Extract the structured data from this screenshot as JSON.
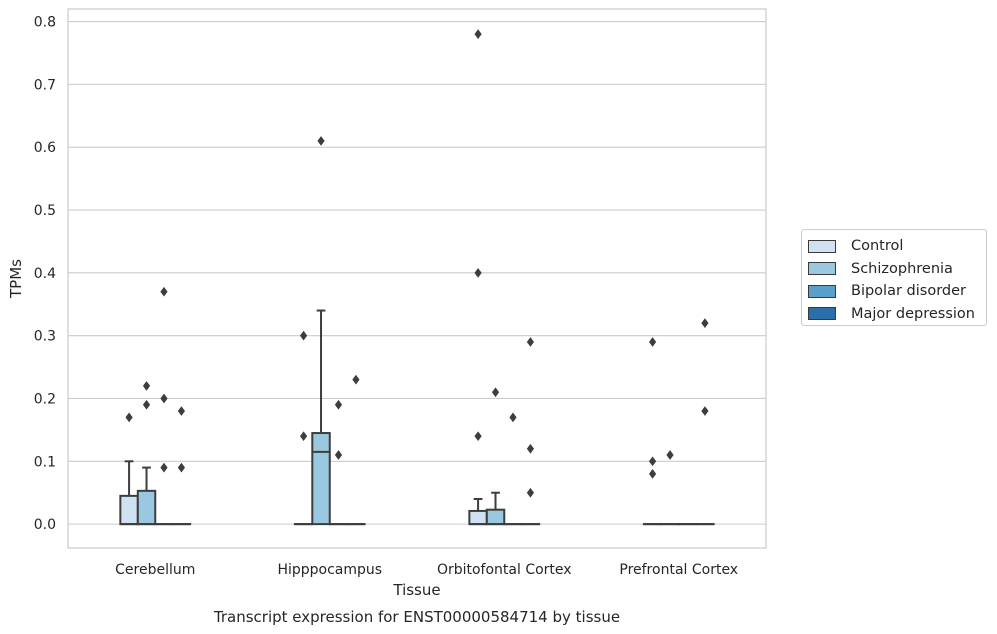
{
  "chart_data": {
    "type": "box",
    "title": "Transcript expression for ENST00000584714 by tissue",
    "xlabel": "Tissue",
    "ylabel": "TPMs",
    "ylim": [
      -0.038,
      0.82
    ],
    "yticks": [
      0.0,
      0.1,
      0.2,
      0.3,
      0.4,
      0.5,
      0.6,
      0.7,
      0.8
    ],
    "ytick_labels": [
      "0.0",
      "0.1",
      "0.2",
      "0.3",
      "0.4",
      "0.5",
      "0.6",
      "0.7",
      "0.8"
    ],
    "grid": true,
    "legend_position": "right",
    "categories": [
      "Cerebellum",
      "Hipppocampus",
      "Orbitofontal Cortex",
      "Prefrontal Cortex"
    ],
    "series": [
      {
        "name": "Control",
        "color": "#d0e2f2",
        "boxes": [
          {
            "q1": 0.0,
            "median": 0.0,
            "q3": 0.045,
            "whisker_low": 0.0,
            "whisker_high": 0.1,
            "outliers": [
              0.17
            ]
          },
          {
            "q1": 0.0,
            "median": 0.0,
            "q3": 0.0,
            "whisker_low": 0.0,
            "whisker_high": 0.0,
            "outliers": [
              0.14,
              0.3
            ]
          },
          {
            "q1": 0.0,
            "median": 0.0,
            "q3": 0.021,
            "whisker_low": 0.0,
            "whisker_high": 0.04,
            "outliers": [
              0.14,
              0.4,
              0.78
            ]
          },
          {
            "q1": 0.0,
            "median": 0.0,
            "q3": 0.0,
            "whisker_low": 0.0,
            "whisker_high": 0.0,
            "outliers": [
              0.08,
              0.1,
              0.29
            ]
          }
        ]
      },
      {
        "name": "Schizophrenia",
        "color": "#9ac8e0",
        "boxes": [
          {
            "q1": 0.0,
            "median": 0.0,
            "q3": 0.053,
            "whisker_low": 0.0,
            "whisker_high": 0.09,
            "outliers": [
              0.19,
              0.22
            ]
          },
          {
            "q1": 0.0,
            "median": 0.115,
            "q3": 0.145,
            "whisker_low": 0.0,
            "whisker_high": 0.34,
            "outliers": [
              0.61
            ]
          },
          {
            "q1": 0.0,
            "median": 0.0,
            "q3": 0.023,
            "whisker_low": 0.0,
            "whisker_high": 0.05,
            "outliers": [
              0.21
            ]
          },
          {
            "q1": 0.0,
            "median": 0.0,
            "q3": 0.0,
            "whisker_low": 0.0,
            "whisker_high": 0.0,
            "outliers": [
              0.11
            ]
          }
        ]
      },
      {
        "name": "Bipolar disorder",
        "color": "#5a9fcb",
        "boxes": [
          {
            "q1": 0.0,
            "median": 0.0,
            "q3": 0.0,
            "whisker_low": 0.0,
            "whisker_high": 0.0,
            "outliers": [
              0.09,
              0.2,
              0.37
            ]
          },
          {
            "q1": 0.0,
            "median": 0.0,
            "q3": 0.0,
            "whisker_low": 0.0,
            "whisker_high": 0.0,
            "outliers": [
              0.11,
              0.19
            ]
          },
          {
            "q1": 0.0,
            "median": 0.0,
            "q3": 0.0,
            "whisker_low": 0.0,
            "whisker_high": 0.0,
            "outliers": [
              0.17
            ]
          },
          {
            "q1": 0.0,
            "median": 0.0,
            "q3": 0.0,
            "whisker_low": 0.0,
            "whisker_high": 0.0,
            "outliers": []
          }
        ]
      },
      {
        "name": "Major depression",
        "color": "#2b6ea9",
        "boxes": [
          {
            "q1": 0.0,
            "median": 0.0,
            "q3": 0.0,
            "whisker_low": 0.0,
            "whisker_high": 0.0,
            "outliers": [
              0.09,
              0.18
            ]
          },
          {
            "q1": 0.0,
            "median": 0.0,
            "q3": 0.0,
            "whisker_low": 0.0,
            "whisker_high": 0.0,
            "outliers": [
              0.23
            ]
          },
          {
            "q1": 0.0,
            "median": 0.0,
            "q3": 0.0,
            "whisker_low": 0.0,
            "whisker_high": 0.0,
            "outliers": [
              0.05,
              0.12,
              0.29
            ]
          },
          {
            "q1": 0.0,
            "median": 0.0,
            "q3": 0.0,
            "whisker_low": 0.0,
            "whisker_high": 0.0,
            "outliers": [
              0.18,
              0.32
            ]
          }
        ]
      }
    ]
  }
}
